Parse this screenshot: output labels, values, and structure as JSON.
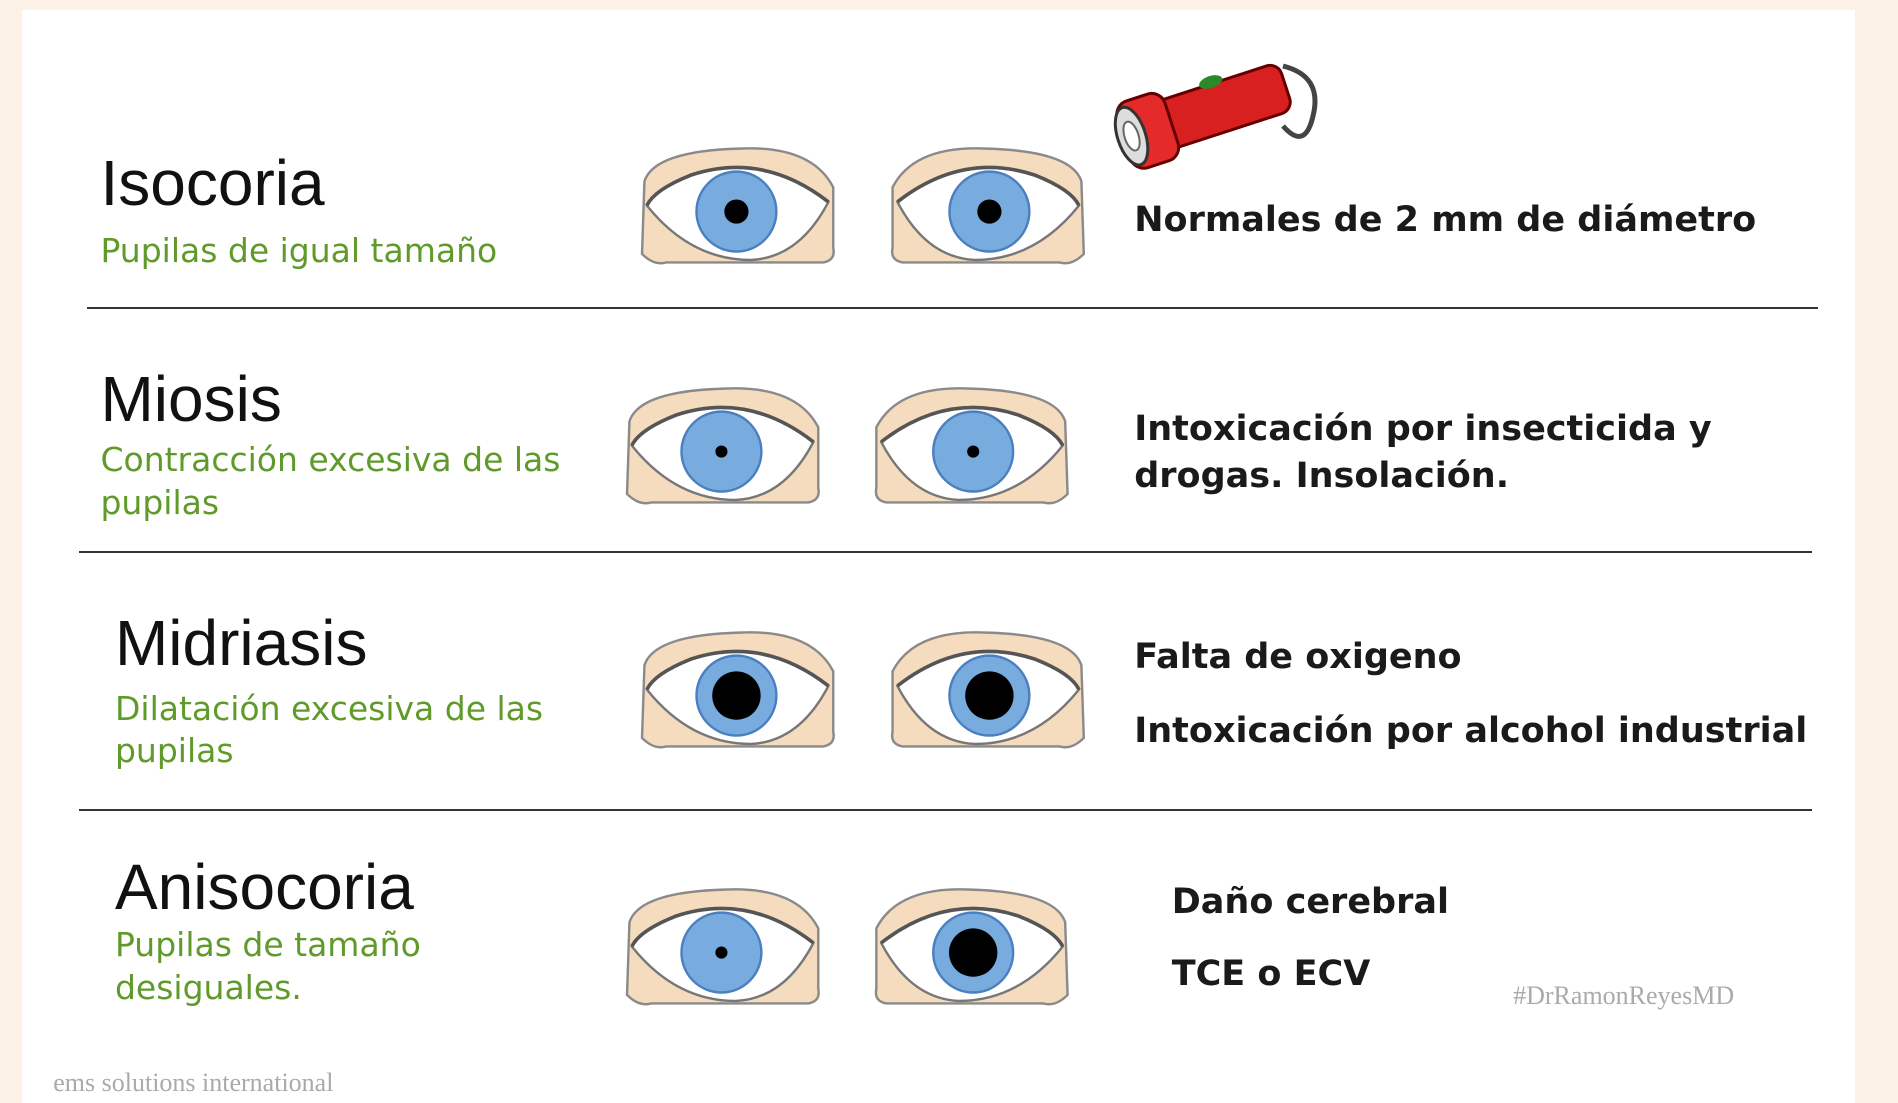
{
  "rows": [
    {
      "title": "Isocoria",
      "subtitle": "Pupilas de igual tamaño",
      "notes": [
        "Normales de 2 mm de diámetro"
      ]
    },
    {
      "title": "Miosis",
      "subtitle": "Contracción excesiva de las pupilas",
      "notes": [
        "Intoxicación por insecticida y drogas. Insolación."
      ]
    },
    {
      "title": "Midriasis",
      "subtitle": "Dilatación excesiva de las pupilas",
      "notes": [
        "Falta de oxigeno",
        "Intoxicación por alcohol industrial"
      ]
    },
    {
      "title": "Anisocoria",
      "subtitle": "Pupilas de tamaño desiguales.",
      "notes": [
        "Daño cerebral",
        "TCE o ECV"
      ]
    }
  ],
  "watermarks": {
    "signature": "#DrRamonReyesMD",
    "source": "ems solutions international"
  }
}
